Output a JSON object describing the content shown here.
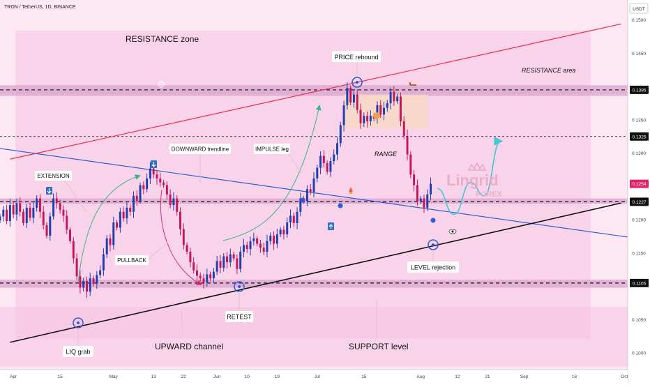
{
  "header": {
    "symbol_line": "TRON / TetherUS, 1D, BINANCE",
    "currency": "USDT"
  },
  "annotations": {
    "resistance_zone": "RESISTANCE zone",
    "price_rebound": "PRICE rebound",
    "resistance_area": "RESISTANCE area",
    "extension": "EXTENSION",
    "downward_trendline": "DOWNWARD trendline",
    "impulse_leg": "IMPULSE leg",
    "range": "RANGE",
    "pullback": "PULLBACK",
    "level_rejection": "LEVEL rejection",
    "retest": "RETEST",
    "liq_grab": "LIQ grab",
    "upward_channel": "UPWARD channel",
    "support_level": "SUPPORT level"
  },
  "watermark": {
    "brand": "Lingrid",
    "sub": "FOREX"
  },
  "colors": {
    "up": "#1f3fae",
    "down": "#c2185b",
    "pink_bg": "#f9d3e9",
    "zone": "#d9a3ce",
    "red_line": "#e8304a",
    "blue_line": "#2f5bd8",
    "black_line": "#111111",
    "projection": "#3ec7d6"
  },
  "chart_data": {
    "type": "candlestick",
    "ylim": [
      0.0975,
      0.153
    ],
    "y_ticks": [
      0.1,
      0.105,
      0.115,
      0.12,
      0.13,
      0.135,
      0.145,
      0.15
    ],
    "y_tick_labels": [
      "0.1000",
      "0.1050",
      "0.1150",
      "0.1200",
      "0.1300",
      "0.1350",
      "0.1450",
      "0.1500"
    ],
    "price_labels": [
      {
        "value": 0.1395,
        "text": "0.1395",
        "bg": "#111111"
      },
      {
        "value": 0.1325,
        "text": "0.1325",
        "bg": "#111111"
      },
      {
        "value": 0.1254,
        "text": "0.1254",
        "bg": "#e0246a"
      },
      {
        "value": 0.1227,
        "text": "0.1227",
        "bg": "#111111"
      },
      {
        "value": 0.1105,
        "text": "0.1105",
        "bg": "#111111"
      }
    ],
    "x_axis": {
      "start": "2024-03-28",
      "end": "2024-10-02",
      "ticks": [
        {
          "date": "2024-04-01",
          "label": "Apr"
        },
        {
          "date": "2024-04-15",
          "label": "15"
        },
        {
          "date": "2024-05-01",
          "label": "May"
        },
        {
          "date": "2024-05-13",
          "label": "13"
        },
        {
          "date": "2024-05-22",
          "label": "22"
        },
        {
          "date": "2024-06-01",
          "label": "Jun"
        },
        {
          "date": "2024-06-10",
          "label": "10"
        },
        {
          "date": "2024-06-19",
          "label": "19"
        },
        {
          "date": "2024-07-01",
          "label": "Jul"
        },
        {
          "date": "2024-07-15",
          "label": "15"
        },
        {
          "date": "2024-08-01",
          "label": "Aug"
        },
        {
          "date": "2024-08-12",
          "label": "12"
        },
        {
          "date": "2024-08-21",
          "label": "21"
        },
        {
          "date": "2024-09-01",
          "label": "Sep"
        },
        {
          "date": "2024-09-16",
          "label": "16"
        },
        {
          "date": "2024-10-01",
          "label": "Oct"
        }
      ]
    },
    "start_date": "2024-03-28",
    "closes": [
      0.1205,
      0.1215,
      0.1198,
      0.1222,
      0.1208,
      0.1225,
      0.1212,
      0.1195,
      0.1218,
      0.1203,
      0.1218,
      0.1232,
      0.1212,
      0.1192,
      0.1176,
      0.1205,
      0.1232,
      0.1225,
      0.1215,
      0.1206,
      0.1185,
      0.1168,
      0.1142,
      0.1115,
      0.1098,
      0.1108,
      0.1092,
      0.1112,
      0.1104,
      0.1117,
      0.1124,
      0.1148,
      0.1172,
      0.1162,
      0.1196,
      0.1188,
      0.1212,
      0.1202,
      0.1218,
      0.1212,
      0.1236,
      0.1228,
      0.1252,
      0.1246,
      0.1262,
      0.1277,
      0.1268,
      0.1262,
      0.1256,
      0.1252,
      0.1238,
      0.1222,
      0.1232,
      0.1212,
      0.1186,
      0.1162,
      0.1152,
      0.1136,
      0.1124,
      0.1116,
      0.1112,
      0.1106,
      0.1118,
      0.1112,
      0.1122,
      0.1138,
      0.1128,
      0.1145,
      0.1136,
      0.1148,
      0.1142,
      0.1126,
      0.1152,
      0.1162,
      0.1156,
      0.1168,
      0.1172,
      0.1164,
      0.1158,
      0.1152,
      0.1168,
      0.1176,
      0.1164,
      0.1178,
      0.1185,
      0.1178,
      0.1196,
      0.1206,
      0.1195,
      0.1212,
      0.1232,
      0.1228,
      0.1246,
      0.1242,
      0.1262,
      0.1278,
      0.1296,
      0.1285,
      0.1272,
      0.1288,
      0.1298,
      0.1315,
      0.1342,
      0.1372,
      0.1398,
      0.1376,
      0.1388,
      0.1365,
      0.1345,
      0.1356,
      0.1348,
      0.1356,
      0.1352,
      0.1372,
      0.1358,
      0.1368,
      0.1375,
      0.1392,
      0.1378,
      0.1385,
      0.1348,
      0.1326,
      0.1298,
      0.1268,
      0.1252,
      0.1228,
      0.1232,
      0.1218,
      0.1238,
      0.1254
    ],
    "zones": [
      {
        "name": "Resistance area",
        "from": 0.1386,
        "to": 0.1402
      },
      {
        "name": "Mid level zone",
        "from": 0.1224,
        "to": 0.1232
      },
      {
        "name": "Support level zone",
        "from": 0.1098,
        "to": 0.111
      },
      {
        "name": "Range box",
        "from": 0.1338,
        "to": 0.1388,
        "start": "2024-07-09",
        "end": "2024-08-03"
      }
    ],
    "horizontal_levels": [
      0.1395,
      0.1325,
      0.1227,
      0.1105
    ],
    "trendlines": [
      {
        "name": "Resistance channel",
        "from": [
          "2024-03-31",
          0.1291
        ],
        "to": [
          "2024-09-30",
          0.1494
        ]
      },
      {
        "name": "Downward trendline",
        "from": [
          "2024-03-28",
          0.1307
        ],
        "to": [
          "2024-10-02",
          0.1174
        ]
      },
      {
        "name": "Upward channel",
        "from": [
          "2024-03-31",
          0.1016
        ],
        "to": [
          "2024-09-30",
          0.1225
        ]
      }
    ],
    "projection": [
      [
        "2024-08-06",
        0.1247
      ],
      [
        "2024-08-11",
        0.1208
      ],
      [
        "2024-08-16",
        0.1256
      ],
      [
        "2024-08-20",
        0.1236
      ],
      [
        "2024-08-25",
        0.1318
      ]
    ]
  }
}
